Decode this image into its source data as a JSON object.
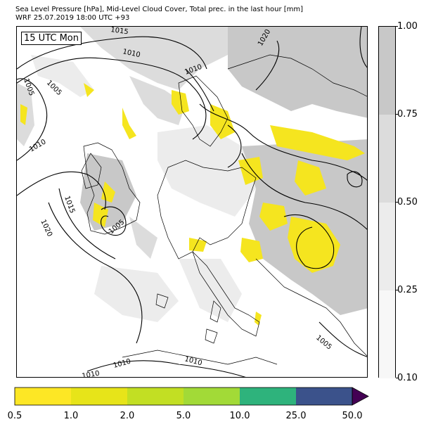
{
  "title": {
    "line1": "Sea Level Pressure [hPa], Mid-Level Cloud Cover, Total prec. in the last hour [mm]",
    "line2": "WRF 25.07.2019 18:00 UTC +93"
  },
  "map": {
    "time_label": "15 UTC Mon",
    "isobar_labels": [
      "1015",
      "1010",
      "1005",
      "1010",
      "1020",
      "1005",
      "1010",
      "1015",
      "1020",
      "1005",
      "1005",
      "1010",
      "1010",
      "1010"
    ],
    "colors": {
      "land_line": "#000000",
      "cloud_high": "#c8c8c8",
      "cloud_mid": "#dcdcdc",
      "cloud_low": "#ececec",
      "precip": "#f5e51f"
    }
  },
  "cloud_colorbar": {
    "ticks": [
      "1.00",
      "0.75",
      "0.50",
      "0.25",
      "0.10"
    ],
    "segments": [
      {
        "from": 0.75,
        "to": 1.0,
        "color": "#c8c8c8"
      },
      {
        "from": 0.5,
        "to": 0.75,
        "color": "#dcdcdc"
      },
      {
        "from": 0.25,
        "to": 0.5,
        "color": "#ececec"
      },
      {
        "from": 0.1,
        "to": 0.25,
        "color": "#f7f7f7"
      }
    ]
  },
  "precip_colorbar": {
    "ticks": [
      "0.5",
      "1.0",
      "2.0",
      "5.0",
      "10.0",
      "25.0",
      "50.0"
    ],
    "colors": [
      "#fde725",
      "#e7e419",
      "#c2df23",
      "#a2da37",
      "#2eb37c",
      "#3b528b",
      "#440154"
    ]
  }
}
